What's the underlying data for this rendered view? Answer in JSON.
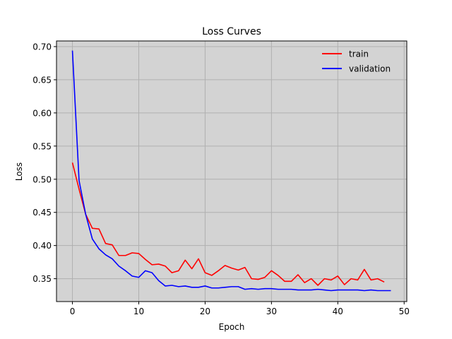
{
  "chart_data": {
    "type": "line",
    "title": "Loss Curves",
    "xlabel": "Epoch",
    "ylabel": "Loss",
    "xlim": [
      -2.4,
      50.4
    ],
    "ylim": [
      0.3155,
      0.7085
    ],
    "xticks": [
      0,
      10,
      20,
      30,
      40,
      50
    ],
    "xtick_labels": [
      "0",
      "10",
      "20",
      "30",
      "40",
      "50"
    ],
    "yticks": [
      0.35,
      0.4,
      0.45,
      0.5,
      0.55,
      0.6,
      0.65,
      0.7
    ],
    "ytick_labels": [
      "0.35",
      "0.40",
      "0.45",
      "0.50",
      "0.55",
      "0.60",
      "0.65",
      "0.70"
    ],
    "grid": true,
    "legend": "top-right",
    "background_color": "#d3d3d3",
    "grid_color": "#b0b0b0",
    "series": [
      {
        "name": "train",
        "color": "#ff0000",
        "x": [
          0,
          1,
          2,
          3,
          4,
          5,
          6,
          7,
          8,
          9,
          10,
          11,
          12,
          13,
          14,
          15,
          16,
          17,
          18,
          19,
          20,
          21,
          22,
          23,
          24,
          25,
          26,
          27,
          28,
          29,
          30,
          31,
          32,
          33,
          34,
          35,
          36,
          37,
          38,
          39,
          40,
          41,
          42,
          43,
          44,
          45,
          46,
          47
        ],
        "values": [
          0.525,
          0.485,
          0.447,
          0.426,
          0.425,
          0.403,
          0.401,
          0.385,
          0.385,
          0.389,
          0.388,
          0.379,
          0.371,
          0.372,
          0.369,
          0.359,
          0.362,
          0.378,
          0.365,
          0.38,
          0.359,
          0.355,
          0.362,
          0.37,
          0.366,
          0.363,
          0.367,
          0.35,
          0.349,
          0.352,
          0.362,
          0.355,
          0.346,
          0.346,
          0.356,
          0.344,
          0.35,
          0.34,
          0.35,
          0.348,
          0.354,
          0.341,
          0.35,
          0.348,
          0.364,
          0.348,
          0.35,
          0.345
        ]
      },
      {
        "name": "validation",
        "color": "#0000ff",
        "x": [
          0,
          1,
          2,
          3,
          4,
          5,
          6,
          7,
          8,
          9,
          10,
          11,
          12,
          13,
          14,
          15,
          16,
          17,
          18,
          19,
          20,
          21,
          22,
          23,
          24,
          25,
          26,
          27,
          28,
          29,
          30,
          31,
          32,
          33,
          34,
          35,
          36,
          37,
          38,
          39,
          40,
          41,
          42,
          43,
          44,
          45,
          46,
          47,
          48
        ],
        "values": [
          0.694,
          0.498,
          0.447,
          0.41,
          0.395,
          0.386,
          0.38,
          0.369,
          0.362,
          0.354,
          0.352,
          0.362,
          0.359,
          0.347,
          0.339,
          0.34,
          0.338,
          0.339,
          0.337,
          0.337,
          0.339,
          0.336,
          0.336,
          0.337,
          0.338,
          0.338,
          0.334,
          0.335,
          0.334,
          0.335,
          0.335,
          0.334,
          0.334,
          0.334,
          0.333,
          0.333,
          0.333,
          0.334,
          0.333,
          0.332,
          0.333,
          0.333,
          0.333,
          0.333,
          0.332,
          0.333,
          0.332,
          0.332,
          0.332
        ]
      }
    ]
  }
}
